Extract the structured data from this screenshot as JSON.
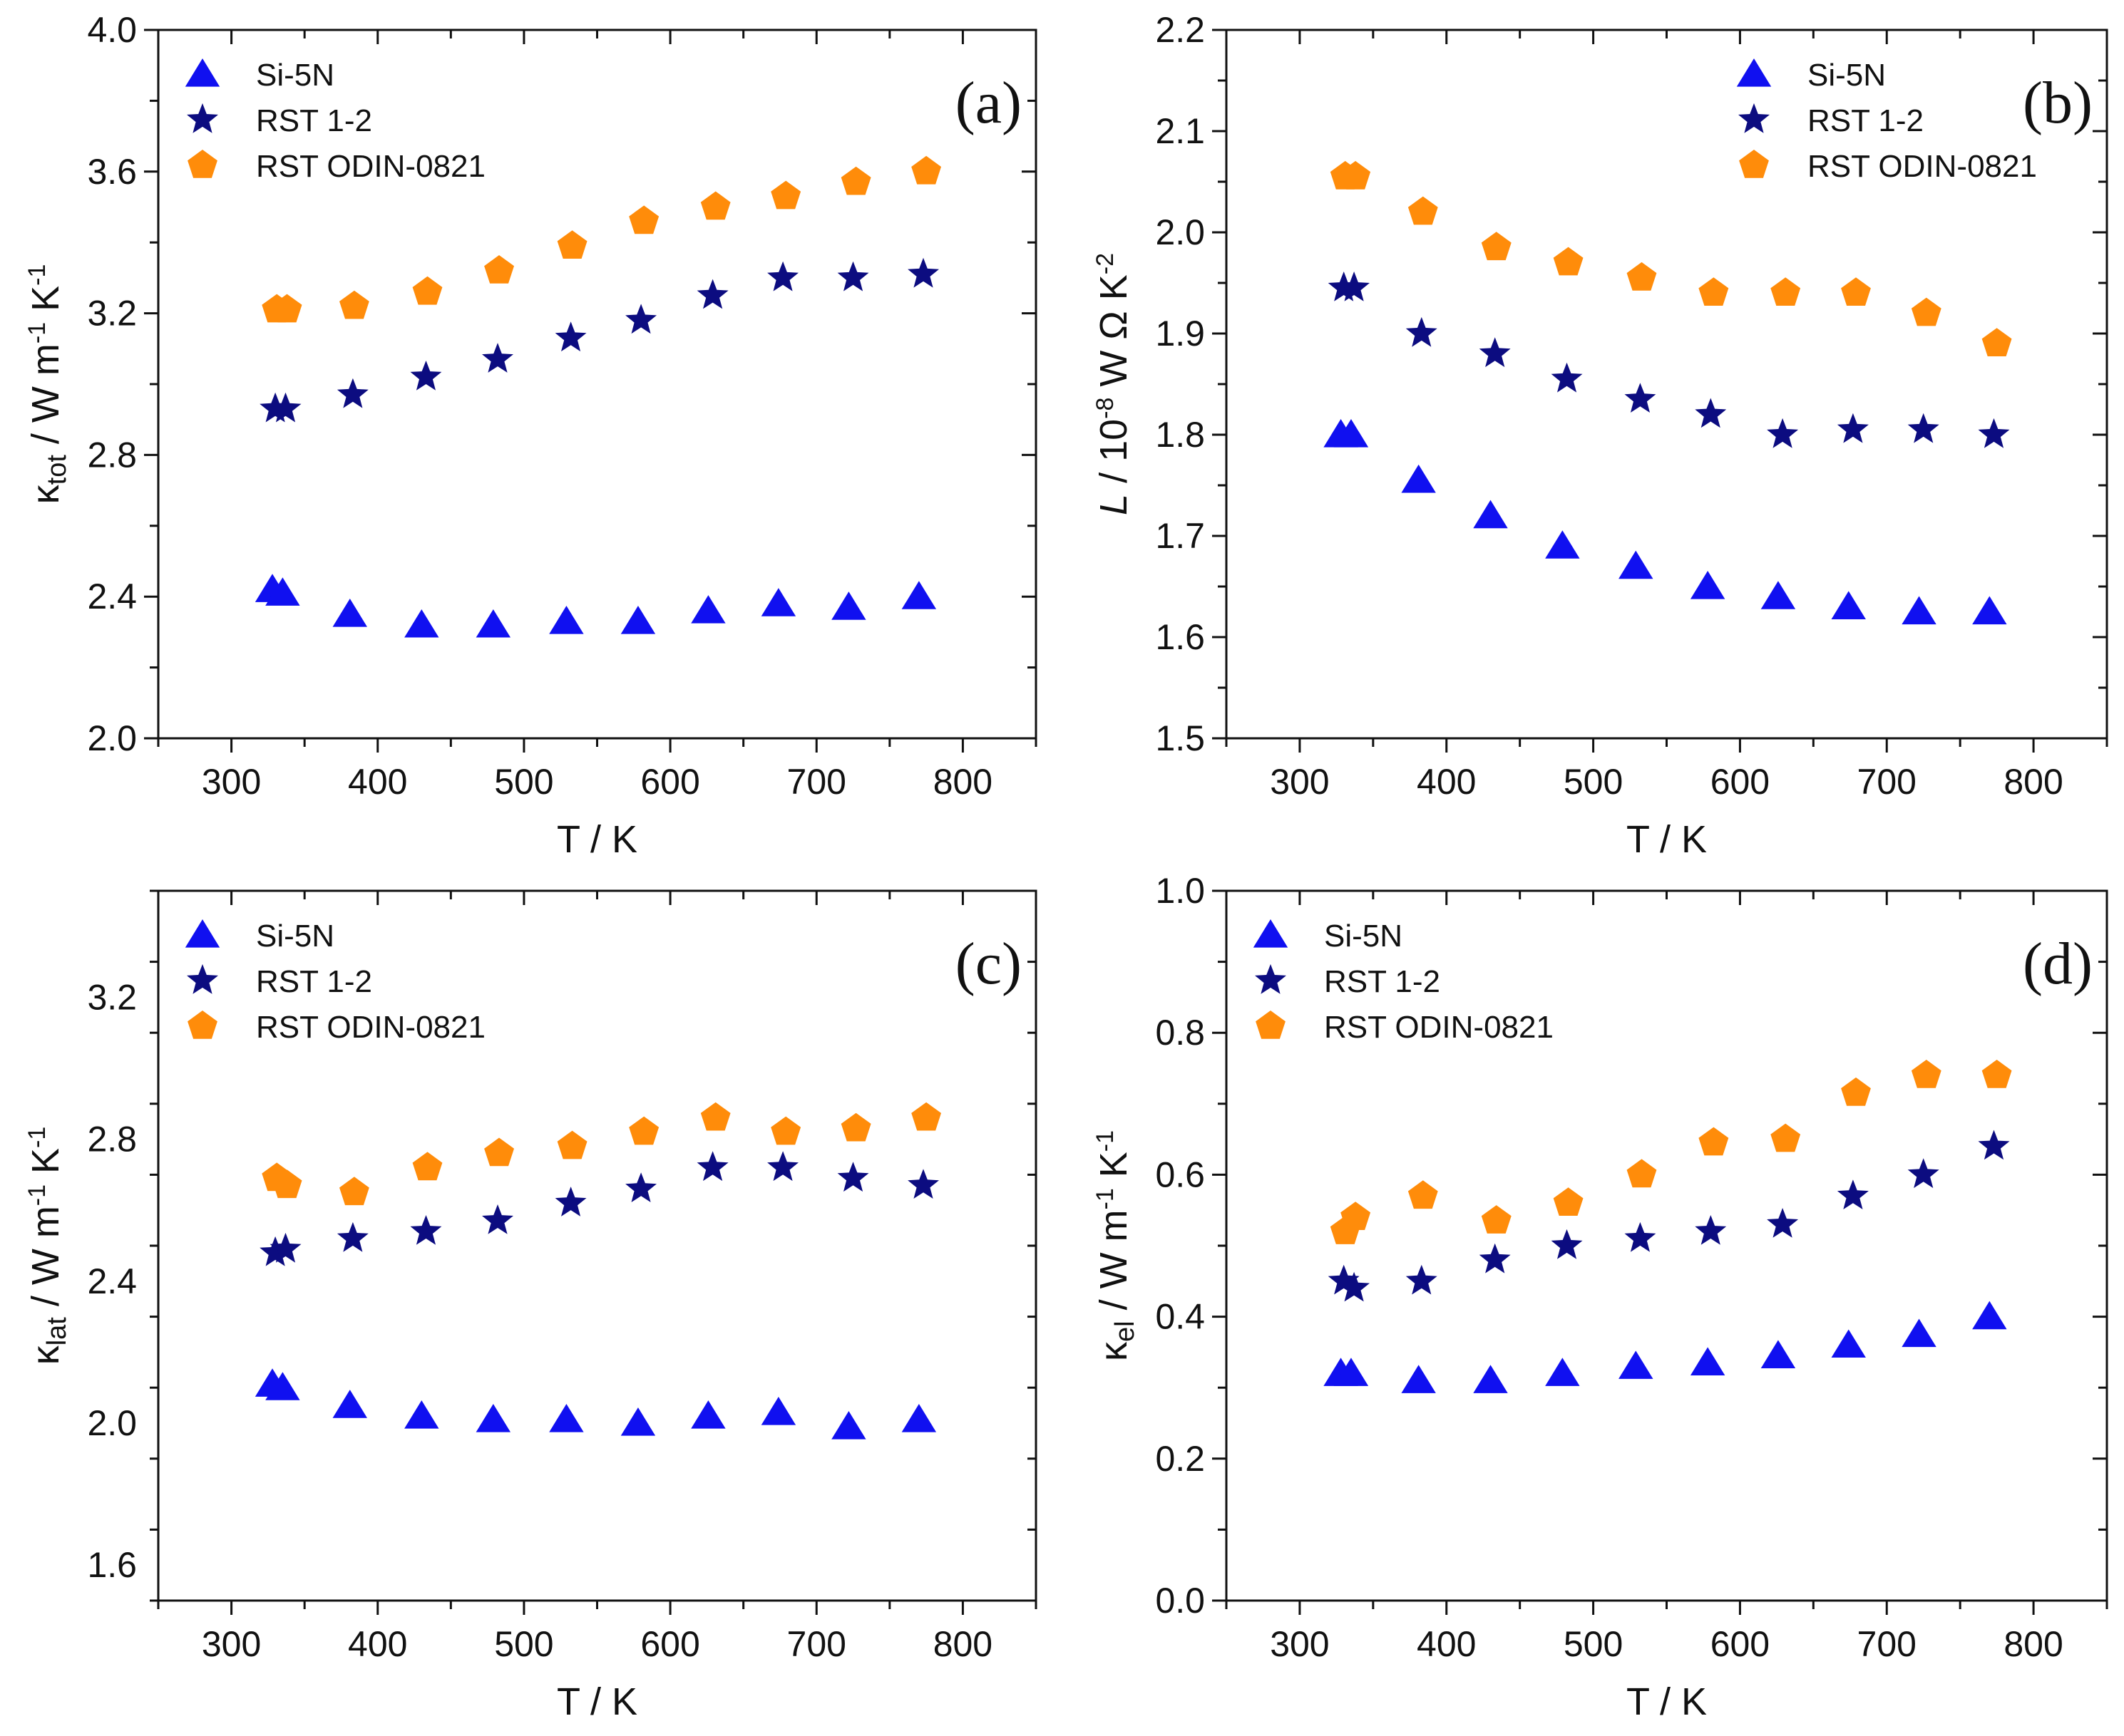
{
  "chart_data": [
    {
      "type": "scatter",
      "panel_label": "(a)",
      "xlabel": "T / K",
      "ylabel_main": "κ",
      "ylabel_sub": "tot",
      "ylabel_rest": " / W m",
      "ylabel_sup1": "-1",
      "ylabel_rest2": " K",
      "ylabel_sup2": "-1",
      "xlim": [
        250,
        850
      ],
      "ylim": [
        2.0,
        4.0
      ],
      "xticks": [
        300,
        400,
        500,
        600,
        700,
        800
      ],
      "yticks": [
        2.0,
        2.4,
        2.8,
        3.2,
        3.6,
        4.0
      ],
      "ydecimals": 1,
      "yminor": 0.2,
      "xminor": 50,
      "legend_position": "top-left",
      "series": [
        {
          "name": "Si-5N",
          "marker": "triangle",
          "color": "#1010f0",
          "x": [
            328,
            335,
            381,
            430,
            479,
            529,
            578,
            626,
            674,
            722,
            770
          ],
          "y": [
            2.42,
            2.41,
            2.35,
            2.32,
            2.32,
            2.33,
            2.33,
            2.36,
            2.38,
            2.37,
            2.4
          ]
        },
        {
          "name": "RST 1-2",
          "marker": "star",
          "color": "#0c0c80",
          "x": [
            330,
            337,
            383,
            433,
            482,
            532,
            580,
            629,
            677,
            725,
            773
          ],
          "y": [
            2.93,
            2.93,
            2.97,
            3.02,
            3.07,
            3.13,
            3.18,
            3.25,
            3.3,
            3.3,
            3.31
          ]
        },
        {
          "name": "RST ODIN-0821",
          "marker": "pentagon",
          "color": "#ff8c0a",
          "x": [
            331,
            338,
            384,
            434,
            483,
            533,
            582,
            631,
            679,
            727,
            775
          ],
          "y": [
            3.21,
            3.21,
            3.22,
            3.26,
            3.32,
            3.39,
            3.46,
            3.5,
            3.53,
            3.57,
            3.6
          ]
        }
      ]
    },
    {
      "type": "scatter",
      "panel_label": "(b)",
      "xlabel": "T / K",
      "ylabel_main": "L",
      "ylabel_sub": "",
      "ylabel_rest": " / 10",
      "ylabel_sup1": "-8",
      "ylabel_rest2": " W Ω K",
      "ylabel_sup2": "-2",
      "xlim": [
        250,
        850
      ],
      "ylim": [
        1.5,
        2.2
      ],
      "xticks": [
        300,
        400,
        500,
        600,
        700,
        800
      ],
      "yticks": [
        1.5,
        1.6,
        1.7,
        1.8,
        1.9,
        2.0,
        2.1,
        2.2
      ],
      "ydecimals": 1,
      "yminor": 0.05,
      "xminor": 50,
      "legend_position": "top-right",
      "series": [
        {
          "name": "Si-5N",
          "marker": "triangle",
          "color": "#1010f0",
          "x": [
            328,
            335,
            381,
            430,
            479,
            529,
            578,
            626,
            674,
            722,
            770
          ],
          "y": [
            1.8,
            1.8,
            1.755,
            1.72,
            1.69,
            1.67,
            1.65,
            1.64,
            1.63,
            1.625,
            1.625
          ]
        },
        {
          "name": "RST 1-2",
          "marker": "star",
          "color": "#0c0c80",
          "x": [
            330,
            337,
            383,
            433,
            482,
            532,
            580,
            629,
            677,
            725,
            773
          ],
          "y": [
            1.945,
            1.945,
            1.9,
            1.88,
            1.855,
            1.835,
            1.82,
            1.8,
            1.805,
            1.805,
            1.8
          ]
        },
        {
          "name": "RST ODIN-0821",
          "marker": "pentagon",
          "color": "#ff8c0a",
          "x": [
            331,
            338,
            384,
            434,
            483,
            533,
            582,
            631,
            679,
            727,
            775
          ],
          "y": [
            2.055,
            2.055,
            2.02,
            1.985,
            1.97,
            1.955,
            1.94,
            1.94,
            1.94,
            1.92,
            1.89
          ]
        }
      ]
    },
    {
      "type": "scatter",
      "panel_label": "(c)",
      "xlabel": "T / K",
      "ylabel_main": "κ",
      "ylabel_sub": "lat",
      "ylabel_rest": " / W m",
      "ylabel_sup1": "-1",
      "ylabel_rest2": " K",
      "ylabel_sup2": "-1",
      "xlim": [
        250,
        850
      ],
      "ylim": [
        1.5,
        3.5
      ],
      "xticks": [
        300,
        400,
        500,
        600,
        700,
        800
      ],
      "yticks": [
        1.6,
        2.0,
        2.4,
        2.8,
        3.2
      ],
      "ydecimals": 1,
      "yminor": 0.2,
      "xminor": 50,
      "legend_position": "top-left",
      "series": [
        {
          "name": "Si-5N",
          "marker": "triangle",
          "color": "#1010f0",
          "x": [
            328,
            335,
            381,
            430,
            479,
            529,
            578,
            626,
            674,
            722,
            770
          ],
          "y": [
            2.11,
            2.1,
            2.05,
            2.02,
            2.01,
            2.01,
            2.0,
            2.02,
            2.03,
            1.99,
            2.01
          ]
        },
        {
          "name": "RST 1-2",
          "marker": "star",
          "color": "#0c0c80",
          "x": [
            330,
            337,
            383,
            433,
            482,
            532,
            580,
            629,
            677,
            725,
            773
          ],
          "y": [
            2.48,
            2.49,
            2.52,
            2.54,
            2.57,
            2.62,
            2.66,
            2.72,
            2.72,
            2.69,
            2.67
          ]
        },
        {
          "name": "RST ODIN-0821",
          "marker": "pentagon",
          "color": "#ff8c0a",
          "x": [
            331,
            338,
            384,
            434,
            483,
            533,
            582,
            631,
            679,
            727,
            775
          ],
          "y": [
            2.69,
            2.67,
            2.65,
            2.72,
            2.76,
            2.78,
            2.82,
            2.86,
            2.82,
            2.83,
            2.86
          ]
        }
      ]
    },
    {
      "type": "scatter",
      "panel_label": "(d)",
      "xlabel": "T / K",
      "ylabel_main": "κ",
      "ylabel_sub": "el",
      "ylabel_rest": " / W m",
      "ylabel_sup1": "-1",
      "ylabel_rest2": " K",
      "ylabel_sup2": "-1",
      "xlim": [
        250,
        850
      ],
      "ylim": [
        0.0,
        1.0
      ],
      "xticks": [
        300,
        400,
        500,
        600,
        700,
        800
      ],
      "yticks": [
        0.0,
        0.2,
        0.4,
        0.6,
        0.8,
        1.0
      ],
      "ydecimals": 1,
      "yminor": 0.1,
      "xminor": 50,
      "legend_position": "top-left",
      "series": [
        {
          "name": "Si-5N",
          "marker": "triangle",
          "color": "#1010f0",
          "x": [
            328,
            335,
            381,
            430,
            479,
            529,
            578,
            626,
            674,
            722,
            770
          ],
          "y": [
            0.32,
            0.32,
            0.31,
            0.31,
            0.32,
            0.33,
            0.335,
            0.345,
            0.36,
            0.375,
            0.4
          ]
        },
        {
          "name": "RST 1-2",
          "marker": "star",
          "color": "#0c0c80",
          "x": [
            330,
            337,
            383,
            433,
            482,
            532,
            580,
            629,
            677,
            725,
            773
          ],
          "y": [
            0.45,
            0.44,
            0.45,
            0.48,
            0.5,
            0.51,
            0.52,
            0.53,
            0.57,
            0.6,
            0.64
          ]
        },
        {
          "name": "RST ODIN-0821",
          "marker": "pentagon",
          "color": "#ff8c0a",
          "x": [
            331,
            338,
            384,
            434,
            483,
            533,
            582,
            631,
            679,
            727,
            775
          ],
          "y": [
            0.52,
            0.54,
            0.57,
            0.535,
            0.56,
            0.6,
            0.645,
            0.65,
            0.715,
            0.74,
            0.74
          ]
        }
      ]
    }
  ]
}
